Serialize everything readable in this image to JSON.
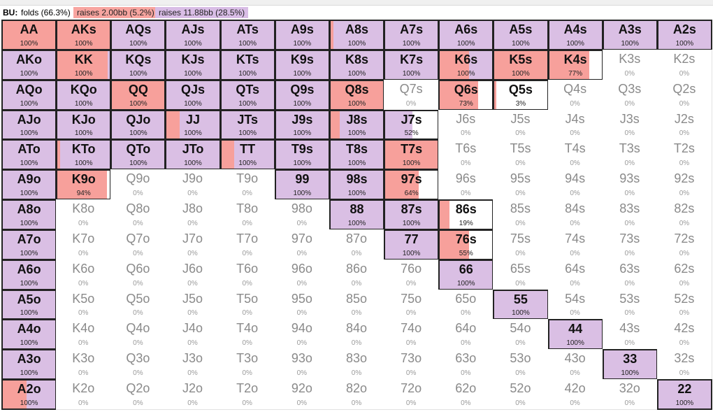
{
  "legend": {
    "position": "BU:",
    "folds": "folds (66.3%)",
    "raise_small": "raises 2.00bb (5.2%)",
    "raise_big": "raises 11.88bb (28.5%)"
  },
  "colors": {
    "raise_small": "#f7a09b",
    "raise_big": "#dabfe4",
    "fold": "#ffffff"
  },
  "rows": [
    [
      {
        "hand": "AA",
        "pct": "100%",
        "red": 1.0,
        "purple": 0.0
      },
      {
        "hand": "AKs",
        "pct": "100%",
        "red": 1.0,
        "purple": 0.0
      },
      {
        "hand": "AQs",
        "pct": "100%",
        "red": 0.0,
        "purple": 1.0
      },
      {
        "hand": "AJs",
        "pct": "100%",
        "red": 0.0,
        "purple": 1.0
      },
      {
        "hand": "ATs",
        "pct": "100%",
        "red": 0.0,
        "purple": 1.0
      },
      {
        "hand": "A9s",
        "pct": "100%",
        "red": 0.0,
        "purple": 1.0
      },
      {
        "hand": "A8s",
        "pct": "100%",
        "red": 0.05,
        "purple": 0.95
      },
      {
        "hand": "A7s",
        "pct": "100%",
        "red": 0.0,
        "purple": 1.0
      },
      {
        "hand": "A6s",
        "pct": "100%",
        "red": 0.0,
        "purple": 1.0
      },
      {
        "hand": "A5s",
        "pct": "100%",
        "red": 0.0,
        "purple": 1.0
      },
      {
        "hand": "A4s",
        "pct": "100%",
        "red": 0.0,
        "purple": 1.0
      },
      {
        "hand": "A3s",
        "pct": "100%",
        "red": 0.0,
        "purple": 1.0
      },
      {
        "hand": "A2s",
        "pct": "100%",
        "red": 0.0,
        "purple": 1.0
      }
    ],
    [
      {
        "hand": "AKo",
        "pct": "100%",
        "red": 0.0,
        "purple": 1.0
      },
      {
        "hand": "KK",
        "pct": "100%",
        "red": 0.95,
        "purple": 0.05
      },
      {
        "hand": "KQs",
        "pct": "100%",
        "red": 0.0,
        "purple": 1.0
      },
      {
        "hand": "KJs",
        "pct": "100%",
        "red": 0.0,
        "purple": 1.0
      },
      {
        "hand": "KTs",
        "pct": "100%",
        "red": 0.0,
        "purple": 1.0
      },
      {
        "hand": "K9s",
        "pct": "100%",
        "red": 0.0,
        "purple": 1.0
      },
      {
        "hand": "K8s",
        "pct": "100%",
        "red": 0.0,
        "purple": 1.0
      },
      {
        "hand": "K7s",
        "pct": "100%",
        "red": 0.0,
        "purple": 1.0
      },
      {
        "hand": "K6s",
        "pct": "100%",
        "red": 0.55,
        "purple": 0.45
      },
      {
        "hand": "K5s",
        "pct": "100%",
        "red": 1.0,
        "purple": 0.0
      },
      {
        "hand": "K4s",
        "pct": "77%",
        "red": 0.77,
        "purple": 0.0
      },
      {
        "hand": "K3s",
        "pct": "0%",
        "red": 0.0,
        "purple": 0.0
      },
      {
        "hand": "K2s",
        "pct": "0%",
        "red": 0.0,
        "purple": 0.0
      }
    ],
    [
      {
        "hand": "AQo",
        "pct": "100%",
        "red": 0.0,
        "purple": 1.0
      },
      {
        "hand": "KQo",
        "pct": "100%",
        "red": 0.0,
        "purple": 1.0
      },
      {
        "hand": "QQ",
        "pct": "100%",
        "red": 1.0,
        "purple": 0.0
      },
      {
        "hand": "QJs",
        "pct": "100%",
        "red": 0.0,
        "purple": 1.0
      },
      {
        "hand": "QTs",
        "pct": "100%",
        "red": 0.0,
        "purple": 1.0
      },
      {
        "hand": "Q9s",
        "pct": "100%",
        "red": 0.0,
        "purple": 1.0
      },
      {
        "hand": "Q8s",
        "pct": "100%",
        "red": 1.0,
        "purple": 0.0
      },
      {
        "hand": "Q7s",
        "pct": "0%",
        "red": 0.0,
        "purple": 0.0
      },
      {
        "hand": "Q6s",
        "pct": "73%",
        "red": 0.73,
        "purple": 0.0
      },
      {
        "hand": "Q5s",
        "pct": "3%",
        "red": 0.03,
        "purple": 0.0
      },
      {
        "hand": "Q4s",
        "pct": "0%",
        "red": 0.0,
        "purple": 0.0
      },
      {
        "hand": "Q3s",
        "pct": "0%",
        "red": 0.0,
        "purple": 0.0
      },
      {
        "hand": "Q2s",
        "pct": "0%",
        "red": 0.0,
        "purple": 0.0
      }
    ],
    [
      {
        "hand": "AJo",
        "pct": "100%",
        "red": 0.0,
        "purple": 1.0
      },
      {
        "hand": "KJo",
        "pct": "100%",
        "red": 0.0,
        "purple": 1.0
      },
      {
        "hand": "QJo",
        "pct": "100%",
        "red": 0.0,
        "purple": 1.0
      },
      {
        "hand": "JJ",
        "pct": "100%",
        "red": 0.25,
        "purple": 0.75
      },
      {
        "hand": "JTs",
        "pct": "100%",
        "red": 0.0,
        "purple": 1.0
      },
      {
        "hand": "J9s",
        "pct": "100%",
        "red": 0.0,
        "purple": 1.0
      },
      {
        "hand": "J8s",
        "pct": "100%",
        "red": 0.18,
        "purple": 0.82
      },
      {
        "hand": "J7s",
        "pct": "52%",
        "red": 0.0,
        "purple": 0.52
      },
      {
        "hand": "J6s",
        "pct": "0%",
        "red": 0.0,
        "purple": 0.0
      },
      {
        "hand": "J5s",
        "pct": "0%",
        "red": 0.0,
        "purple": 0.0
      },
      {
        "hand": "J4s",
        "pct": "0%",
        "red": 0.0,
        "purple": 0.0
      },
      {
        "hand": "J3s",
        "pct": "0%",
        "red": 0.0,
        "purple": 0.0
      },
      {
        "hand": "J2s",
        "pct": "0%",
        "red": 0.0,
        "purple": 0.0
      }
    ],
    [
      {
        "hand": "ATo",
        "pct": "100%",
        "red": 0.0,
        "purple": 1.0
      },
      {
        "hand": "KTo",
        "pct": "100%",
        "red": 0.05,
        "purple": 0.95
      },
      {
        "hand": "QTo",
        "pct": "100%",
        "red": 0.0,
        "purple": 1.0
      },
      {
        "hand": "JTo",
        "pct": "100%",
        "red": 0.0,
        "purple": 1.0
      },
      {
        "hand": "TT",
        "pct": "100%",
        "red": 0.25,
        "purple": 0.75
      },
      {
        "hand": "T9s",
        "pct": "100%",
        "red": 0.0,
        "purple": 1.0
      },
      {
        "hand": "T8s",
        "pct": "100%",
        "red": 0.0,
        "purple": 1.0
      },
      {
        "hand": "T7s",
        "pct": "100%",
        "red": 1.0,
        "purple": 0.0
      },
      {
        "hand": "T6s",
        "pct": "0%",
        "red": 0.0,
        "purple": 0.0
      },
      {
        "hand": "T5s",
        "pct": "0%",
        "red": 0.0,
        "purple": 0.0
      },
      {
        "hand": "T4s",
        "pct": "0%",
        "red": 0.0,
        "purple": 0.0
      },
      {
        "hand": "T3s",
        "pct": "0%",
        "red": 0.0,
        "purple": 0.0
      },
      {
        "hand": "T2s",
        "pct": "0%",
        "red": 0.0,
        "purple": 0.0
      }
    ],
    [
      {
        "hand": "A9o",
        "pct": "100%",
        "red": 0.0,
        "purple": 1.0
      },
      {
        "hand": "K9o",
        "pct": "94%",
        "red": 0.94,
        "purple": 0.0
      },
      {
        "hand": "Q9o",
        "pct": "0%",
        "red": 0.0,
        "purple": 0.0
      },
      {
        "hand": "J9o",
        "pct": "0%",
        "red": 0.0,
        "purple": 0.0
      },
      {
        "hand": "T9o",
        "pct": "0%",
        "red": 0.0,
        "purple": 0.0
      },
      {
        "hand": "99",
        "pct": "100%",
        "red": 0.0,
        "purple": 1.0
      },
      {
        "hand": "98s",
        "pct": "100%",
        "red": 0.0,
        "purple": 1.0
      },
      {
        "hand": "97s",
        "pct": "64%",
        "red": 0.64,
        "purple": 0.0
      },
      {
        "hand": "96s",
        "pct": "0%",
        "red": 0.0,
        "purple": 0.0
      },
      {
        "hand": "95s",
        "pct": "0%",
        "red": 0.0,
        "purple": 0.0
      },
      {
        "hand": "94s",
        "pct": "0%",
        "red": 0.0,
        "purple": 0.0
      },
      {
        "hand": "93s",
        "pct": "0%",
        "red": 0.0,
        "purple": 0.0
      },
      {
        "hand": "92s",
        "pct": "0%",
        "red": 0.0,
        "purple": 0.0
      }
    ],
    [
      {
        "hand": "A8o",
        "pct": "100%",
        "red": 0.0,
        "purple": 1.0
      },
      {
        "hand": "K8o",
        "pct": "0%",
        "red": 0.0,
        "purple": 0.0
      },
      {
        "hand": "Q8o",
        "pct": "0%",
        "red": 0.0,
        "purple": 0.0
      },
      {
        "hand": "J8o",
        "pct": "0%",
        "red": 0.0,
        "purple": 0.0
      },
      {
        "hand": "T8o",
        "pct": "0%",
        "red": 0.0,
        "purple": 0.0
      },
      {
        "hand": "98o",
        "pct": "0%",
        "red": 0.0,
        "purple": 0.0
      },
      {
        "hand": "88",
        "pct": "100%",
        "red": 0.0,
        "purple": 1.0
      },
      {
        "hand": "87s",
        "pct": "100%",
        "red": 0.0,
        "purple": 1.0
      },
      {
        "hand": "86s",
        "pct": "19%",
        "red": 0.19,
        "purple": 0.0
      },
      {
        "hand": "85s",
        "pct": "0%",
        "red": 0.0,
        "purple": 0.0
      },
      {
        "hand": "84s",
        "pct": "0%",
        "red": 0.0,
        "purple": 0.0
      },
      {
        "hand": "83s",
        "pct": "0%",
        "red": 0.0,
        "purple": 0.0
      },
      {
        "hand": "82s",
        "pct": "0%",
        "red": 0.0,
        "purple": 0.0
      }
    ],
    [
      {
        "hand": "A7o",
        "pct": "100%",
        "red": 0.0,
        "purple": 1.0
      },
      {
        "hand": "K7o",
        "pct": "0%",
        "red": 0.0,
        "purple": 0.0
      },
      {
        "hand": "Q7o",
        "pct": "0%",
        "red": 0.0,
        "purple": 0.0
      },
      {
        "hand": "J7o",
        "pct": "0%",
        "red": 0.0,
        "purple": 0.0
      },
      {
        "hand": "T7o",
        "pct": "0%",
        "red": 0.0,
        "purple": 0.0
      },
      {
        "hand": "97o",
        "pct": "0%",
        "red": 0.0,
        "purple": 0.0
      },
      {
        "hand": "87o",
        "pct": "0%",
        "red": 0.0,
        "purple": 0.0
      },
      {
        "hand": "77",
        "pct": "100%",
        "red": 0.0,
        "purple": 1.0
      },
      {
        "hand": "76s",
        "pct": "55%",
        "red": 0.55,
        "purple": 0.0
      },
      {
        "hand": "75s",
        "pct": "0%",
        "red": 0.0,
        "purple": 0.0
      },
      {
        "hand": "74s",
        "pct": "0%",
        "red": 0.0,
        "purple": 0.0
      },
      {
        "hand": "73s",
        "pct": "0%",
        "red": 0.0,
        "purple": 0.0
      },
      {
        "hand": "72s",
        "pct": "0%",
        "red": 0.0,
        "purple": 0.0
      }
    ],
    [
      {
        "hand": "A6o",
        "pct": "100%",
        "red": 0.0,
        "purple": 1.0
      },
      {
        "hand": "K6o",
        "pct": "0%",
        "red": 0.0,
        "purple": 0.0
      },
      {
        "hand": "Q6o",
        "pct": "0%",
        "red": 0.0,
        "purple": 0.0
      },
      {
        "hand": "J6o",
        "pct": "0%",
        "red": 0.0,
        "purple": 0.0
      },
      {
        "hand": "T6o",
        "pct": "0%",
        "red": 0.0,
        "purple": 0.0
      },
      {
        "hand": "96o",
        "pct": "0%",
        "red": 0.0,
        "purple": 0.0
      },
      {
        "hand": "86o",
        "pct": "0%",
        "red": 0.0,
        "purple": 0.0
      },
      {
        "hand": "76o",
        "pct": "0%",
        "red": 0.0,
        "purple": 0.0
      },
      {
        "hand": "66",
        "pct": "100%",
        "red": 0.0,
        "purple": 1.0
      },
      {
        "hand": "65s",
        "pct": "0%",
        "red": 0.0,
        "purple": 0.0
      },
      {
        "hand": "64s",
        "pct": "0%",
        "red": 0.0,
        "purple": 0.0
      },
      {
        "hand": "63s",
        "pct": "0%",
        "red": 0.0,
        "purple": 0.0
      },
      {
        "hand": "62s",
        "pct": "0%",
        "red": 0.0,
        "purple": 0.0
      }
    ],
    [
      {
        "hand": "A5o",
        "pct": "100%",
        "red": 0.0,
        "purple": 1.0
      },
      {
        "hand": "K5o",
        "pct": "0%",
        "red": 0.0,
        "purple": 0.0
      },
      {
        "hand": "Q5o",
        "pct": "0%",
        "red": 0.0,
        "purple": 0.0
      },
      {
        "hand": "J5o",
        "pct": "0%",
        "red": 0.0,
        "purple": 0.0
      },
      {
        "hand": "T5o",
        "pct": "0%",
        "red": 0.0,
        "purple": 0.0
      },
      {
        "hand": "95o",
        "pct": "0%",
        "red": 0.0,
        "purple": 0.0
      },
      {
        "hand": "85o",
        "pct": "0%",
        "red": 0.0,
        "purple": 0.0
      },
      {
        "hand": "75o",
        "pct": "0%",
        "red": 0.0,
        "purple": 0.0
      },
      {
        "hand": "65o",
        "pct": "0%",
        "red": 0.0,
        "purple": 0.0
      },
      {
        "hand": "55",
        "pct": "100%",
        "red": 0.0,
        "purple": 1.0
      },
      {
        "hand": "54s",
        "pct": "0%",
        "red": 0.0,
        "purple": 0.0
      },
      {
        "hand": "53s",
        "pct": "0%",
        "red": 0.0,
        "purple": 0.0
      },
      {
        "hand": "52s",
        "pct": "0%",
        "red": 0.0,
        "purple": 0.0
      }
    ],
    [
      {
        "hand": "A4o",
        "pct": "100%",
        "red": 0.0,
        "purple": 1.0
      },
      {
        "hand": "K4o",
        "pct": "0%",
        "red": 0.0,
        "purple": 0.0
      },
      {
        "hand": "Q4o",
        "pct": "0%",
        "red": 0.0,
        "purple": 0.0
      },
      {
        "hand": "J4o",
        "pct": "0%",
        "red": 0.0,
        "purple": 0.0
      },
      {
        "hand": "T4o",
        "pct": "0%",
        "red": 0.0,
        "purple": 0.0
      },
      {
        "hand": "94o",
        "pct": "0%",
        "red": 0.0,
        "purple": 0.0
      },
      {
        "hand": "84o",
        "pct": "0%",
        "red": 0.0,
        "purple": 0.0
      },
      {
        "hand": "74o",
        "pct": "0%",
        "red": 0.0,
        "purple": 0.0
      },
      {
        "hand": "64o",
        "pct": "0%",
        "red": 0.0,
        "purple": 0.0
      },
      {
        "hand": "54o",
        "pct": "0%",
        "red": 0.0,
        "purple": 0.0
      },
      {
        "hand": "44",
        "pct": "100%",
        "red": 0.0,
        "purple": 1.0
      },
      {
        "hand": "43s",
        "pct": "0%",
        "red": 0.0,
        "purple": 0.0
      },
      {
        "hand": "42s",
        "pct": "0%",
        "red": 0.0,
        "purple": 0.0
      }
    ],
    [
      {
        "hand": "A3o",
        "pct": "100%",
        "red": 0.0,
        "purple": 1.0
      },
      {
        "hand": "K3o",
        "pct": "0%",
        "red": 0.0,
        "purple": 0.0
      },
      {
        "hand": "Q3o",
        "pct": "0%",
        "red": 0.0,
        "purple": 0.0
      },
      {
        "hand": "J3o",
        "pct": "0%",
        "red": 0.0,
        "purple": 0.0
      },
      {
        "hand": "T3o",
        "pct": "0%",
        "red": 0.0,
        "purple": 0.0
      },
      {
        "hand": "93o",
        "pct": "0%",
        "red": 0.0,
        "purple": 0.0
      },
      {
        "hand": "83o",
        "pct": "0%",
        "red": 0.0,
        "purple": 0.0
      },
      {
        "hand": "73o",
        "pct": "0%",
        "red": 0.0,
        "purple": 0.0
      },
      {
        "hand": "63o",
        "pct": "0%",
        "red": 0.0,
        "purple": 0.0
      },
      {
        "hand": "53o",
        "pct": "0%",
        "red": 0.0,
        "purple": 0.0
      },
      {
        "hand": "43o",
        "pct": "0%",
        "red": 0.0,
        "purple": 0.0
      },
      {
        "hand": "33",
        "pct": "100%",
        "red": 0.0,
        "purple": 1.0
      },
      {
        "hand": "32s",
        "pct": "0%",
        "red": 0.0,
        "purple": 0.0
      }
    ],
    [
      {
        "hand": "A2o",
        "pct": "100%",
        "red": 0.45,
        "purple": 0.55
      },
      {
        "hand": "K2o",
        "pct": "0%",
        "red": 0.0,
        "purple": 0.0
      },
      {
        "hand": "Q2o",
        "pct": "0%",
        "red": 0.0,
        "purple": 0.0
      },
      {
        "hand": "J2o",
        "pct": "0%",
        "red": 0.0,
        "purple": 0.0
      },
      {
        "hand": "T2o",
        "pct": "0%",
        "red": 0.0,
        "purple": 0.0
      },
      {
        "hand": "92o",
        "pct": "0%",
        "red": 0.0,
        "purple": 0.0
      },
      {
        "hand": "82o",
        "pct": "0%",
        "red": 0.0,
        "purple": 0.0
      },
      {
        "hand": "72o",
        "pct": "0%",
        "red": 0.0,
        "purple": 0.0
      },
      {
        "hand": "62o",
        "pct": "0%",
        "red": 0.0,
        "purple": 0.0
      },
      {
        "hand": "52o",
        "pct": "0%",
        "red": 0.0,
        "purple": 0.0
      },
      {
        "hand": "42o",
        "pct": "0%",
        "red": 0.0,
        "purple": 0.0
      },
      {
        "hand": "32o",
        "pct": "0%",
        "red": 0.0,
        "purple": 0.0
      },
      {
        "hand": "22",
        "pct": "100%",
        "red": 0.0,
        "purple": 1.0
      }
    ]
  ]
}
